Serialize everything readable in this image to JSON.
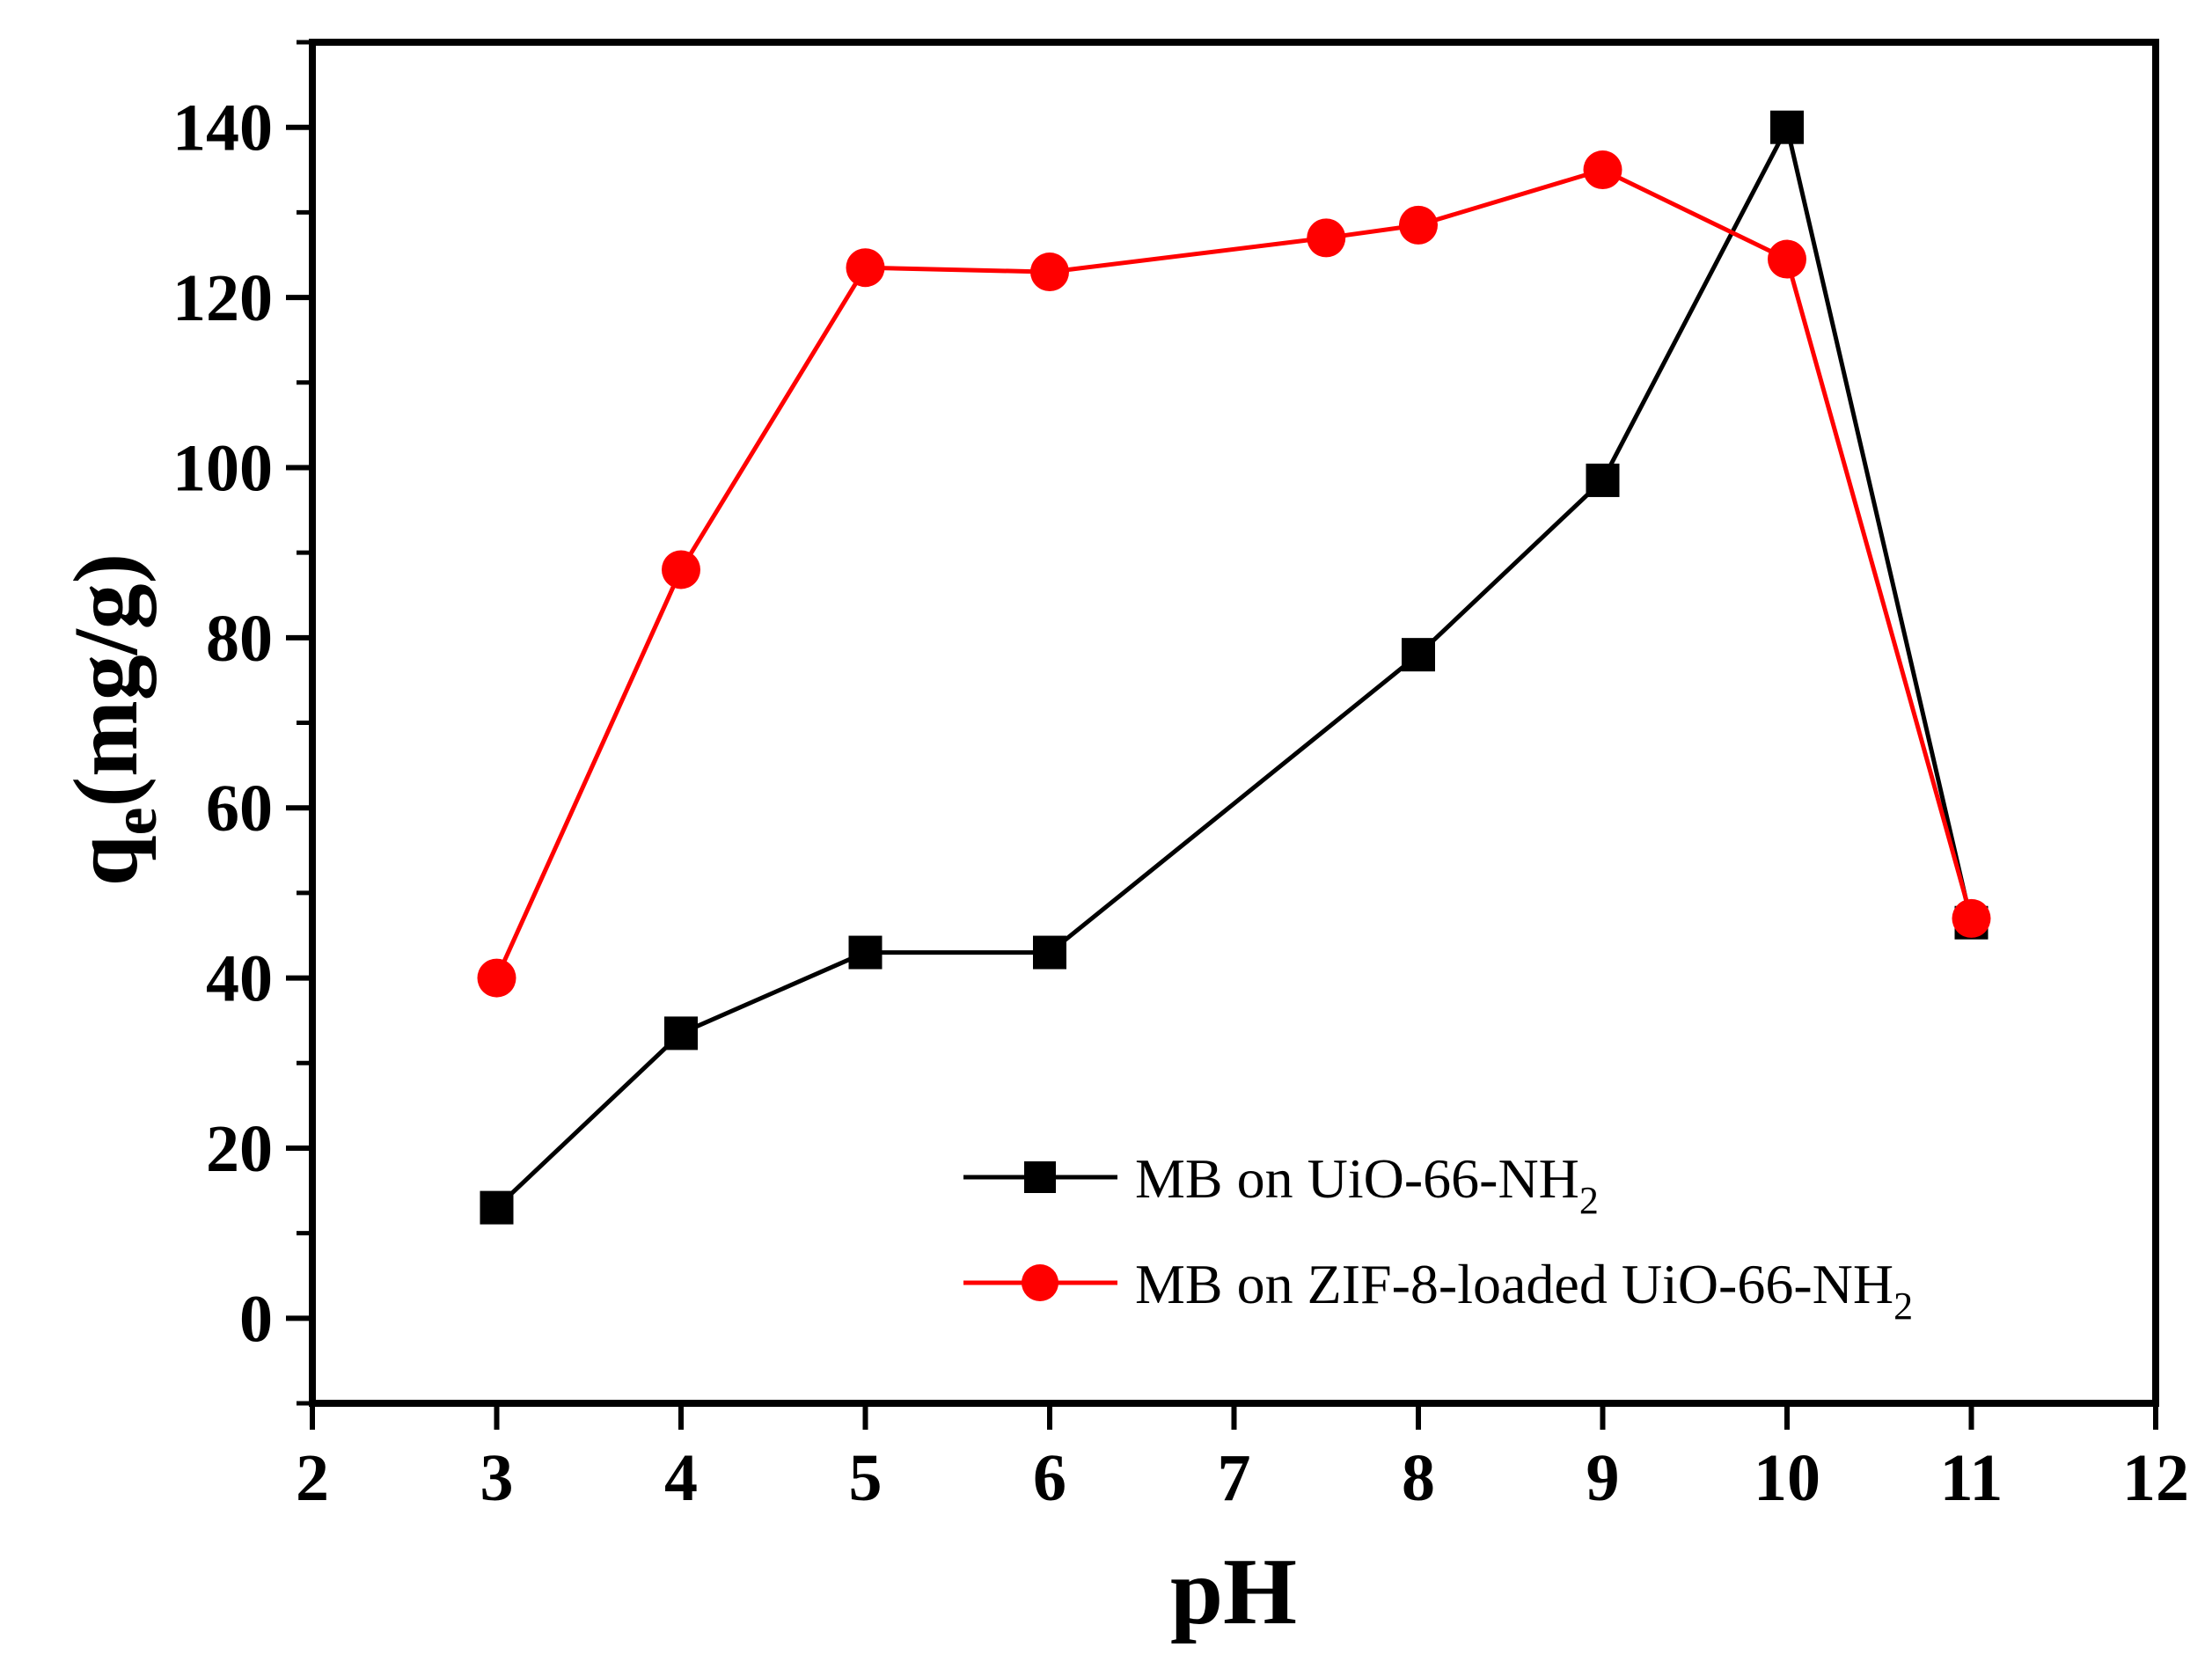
{
  "chart_data": {
    "type": "line",
    "title": "",
    "xlabel": "pH",
    "ylabel": {
      "main": "q",
      "sub": "e",
      "rest": "(mg/g)"
    },
    "xlim": [
      2,
      12
    ],
    "ylim": [
      -10,
      150
    ],
    "xticks": [
      2,
      3,
      4,
      5,
      6,
      7,
      8,
      9,
      10,
      11,
      12
    ],
    "xtick_labels": [
      "2",
      "3",
      "4",
      "5",
      "6",
      "7",
      "8",
      "9",
      "10",
      "11",
      "12"
    ],
    "yticks": [
      0,
      20,
      40,
      60,
      80,
      100,
      120,
      140
    ],
    "ytick_labels": [
      "0",
      "20",
      "40",
      "60",
      "80",
      "100",
      "120",
      "140"
    ],
    "y_minor_step": 10,
    "grid": false,
    "legend_position": "bottom-right",
    "series": [
      {
        "name": "MB on UiO-66-NH2",
        "label_main": "MB on UiO-66-NH",
        "label_sub": "2",
        "color": "#000000",
        "marker": "square",
        "x": [
          3,
          4,
          5,
          6,
          8,
          9,
          10,
          11
        ],
        "values": [
          13,
          33.5,
          43,
          43,
          78,
          98.5,
          140,
          46.5
        ]
      },
      {
        "name": "MB on ZIF-8-loaded UiO-66-NH2",
        "label_main": "MB on ZIF-8-loaded UiO-66-NH",
        "label_sub": "2",
        "color": "#ff0000",
        "marker": "circle",
        "x": [
          3,
          4,
          5,
          6,
          7.5,
          8,
          9,
          10,
          11
        ],
        "values": [
          40,
          88,
          123.5,
          123,
          127,
          128.5,
          135,
          124.5,
          47
        ]
      }
    ]
  }
}
